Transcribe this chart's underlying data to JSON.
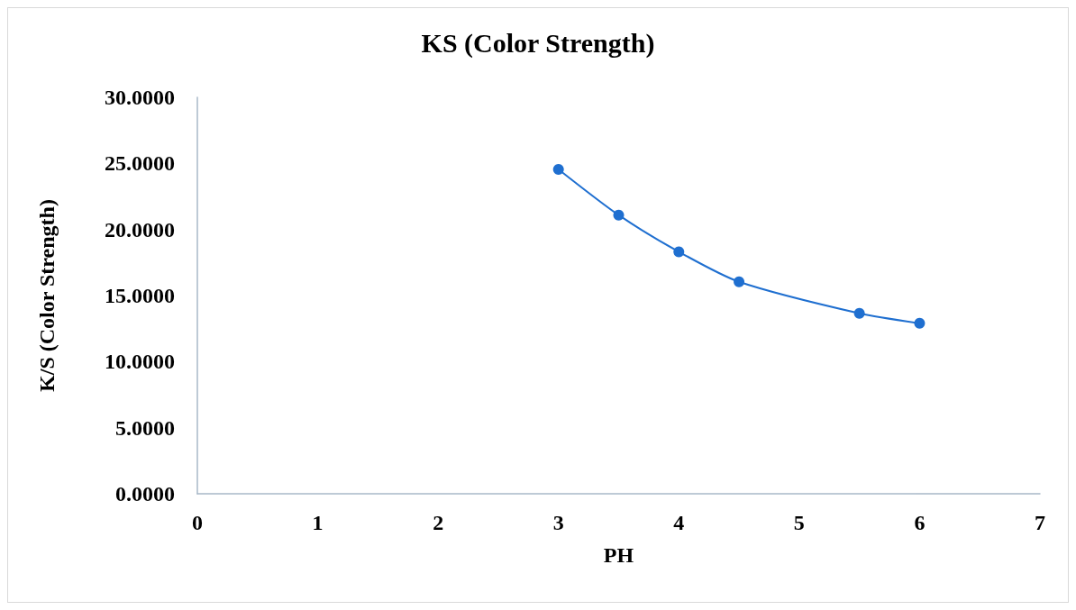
{
  "chart_data": {
    "type": "line",
    "title": "KS (Color Strength)",
    "xlabel": "PH",
    "ylabel": "K/S (Color Strength)",
    "x": [
      3,
      3.5,
      4,
      4.5,
      5.5,
      6
    ],
    "series": [
      {
        "color": "#1f6fd0",
        "values": [
          24.55,
          21.09,
          18.31,
          16.04,
          13.65,
          12.9
        ]
      }
    ],
    "xlim": [
      0,
      7
    ],
    "xticks": [
      0,
      1,
      2,
      3,
      4,
      5,
      6,
      7
    ],
    "ylim": [
      0,
      30
    ],
    "yticks": [
      {
        "value": 0,
        "label": "0.0000"
      },
      {
        "value": 5,
        "label": "5.0000"
      },
      {
        "value": 10,
        "label": "10.0000"
      },
      {
        "value": 15,
        "label": "15.0000"
      },
      {
        "value": 20,
        "label": "20.0000"
      },
      {
        "value": 25,
        "label": "25.0000"
      },
      {
        "value": 30,
        "label": "30.0000"
      }
    ],
    "grid": false,
    "marker": "circle",
    "line_style": "solid"
  }
}
